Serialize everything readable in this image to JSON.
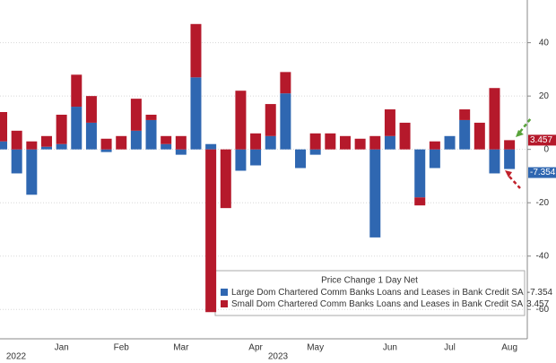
{
  "chart_data": {
    "type": "stacked_bar",
    "categories": [
      null,
      "2022",
      null,
      null,
      "Jan",
      null,
      null,
      null,
      "Feb",
      null,
      null,
      null,
      "Mar",
      null,
      null,
      null,
      null,
      "Apr",
      null,
      null,
      null,
      "May",
      null,
      null,
      null,
      null,
      "Jun",
      null,
      null,
      null,
      "Jul",
      null,
      null,
      null,
      "Aug"
    ],
    "year_labels": [
      "2022",
      "2023"
    ],
    "series": [
      {
        "name": "Large Dom Chartered Comm Banks Loans and Leases in Bank Credit SA",
        "color": "#2f67b1",
        "values": [
          3,
          -9,
          -17,
          1,
          2,
          16,
          10,
          -1,
          0,
          7,
          11,
          2,
          -2,
          27,
          2,
          0,
          -8,
          -6,
          5,
          21,
          -7,
          -2,
          0,
          0,
          0,
          -33,
          5,
          0,
          -18,
          -7,
          5,
          11,
          0,
          -9,
          -7.354
        ]
      },
      {
        "name": "Small Dom Chartered Comm Banks Loans and Leases in Bank Credit SA",
        "color": "#b5192b",
        "values": [
          11,
          7,
          3,
          4,
          11,
          12,
          10,
          4,
          5,
          12,
          2,
          3,
          5,
          20,
          -61,
          -22,
          22,
          6,
          12,
          8,
          0,
          6,
          6,
          5,
          4,
          5,
          10,
          10,
          -3,
          3,
          0,
          4,
          10,
          23,
          3.457
        ]
      }
    ],
    "legend_title": "Price Change 1 Day Net",
    "ylim": [
      -71,
      56
    ],
    "yticks": [
      40,
      20,
      0,
      -20,
      -40,
      -60
    ],
    "grid": true
  }
}
